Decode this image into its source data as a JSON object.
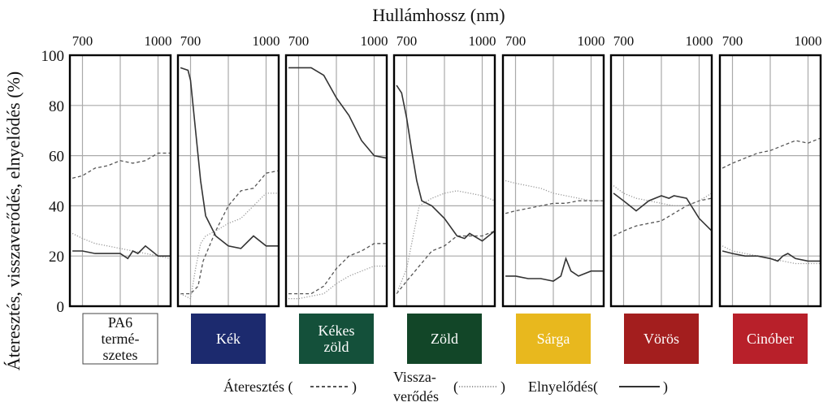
{
  "chart_data": {
    "type": "line",
    "xlabel": "Hullámhossz (nm)",
    "ylabel": "Áteresztés, visszaverődés, elnyelődés (%)",
    "xlim": [
      650,
      1050
    ],
    "ylim": [
      0,
      100
    ],
    "x_tick_labels": [
      "700",
      "1000"
    ],
    "x_ticks": [
      700,
      1000
    ],
    "y_ticks": [
      0,
      20,
      40,
      60,
      80,
      100
    ],
    "grid": true,
    "legend": [
      {
        "key": "transmission",
        "label": "Áteresztés (",
        "close": ")",
        "style": "dashed"
      },
      {
        "key": "reflection",
        "label_lines": [
          "Vissza-",
          "verődés"
        ],
        "close": ")",
        "style": "dotted"
      },
      {
        "key": "absorption",
        "label": "Elnyelődés(",
        "close": ")",
        "style": "solid"
      }
    ],
    "panels": [
      {
        "name_lines": [
          "PA6",
          "termé-",
          "szetes"
        ],
        "swatch": "#ffffff",
        "text_color": "#111111",
        "series": [
          {
            "key": "transmission",
            "x": [
              660,
              700,
              750,
              800,
              850,
              900,
              950,
              1000,
              1050
            ],
            "y": [
              51,
              52,
              55,
              56,
              58,
              57,
              58,
              61,
              61
            ]
          },
          {
            "key": "reflection",
            "x": [
              660,
              700,
              750,
              800,
              850,
              900,
              950,
              1000,
              1050
            ],
            "y": [
              29,
              27,
              25,
              24,
              23,
              22,
              21,
              20,
              19
            ]
          },
          {
            "key": "absorption",
            "x": [
              660,
              700,
              750,
              800,
              850,
              880,
              900,
              920,
              950,
              1000,
              1050
            ],
            "y": [
              22,
              22,
              21,
              21,
              21,
              19,
              22,
              21,
              24,
              20,
              20
            ]
          }
        ]
      },
      {
        "name_lines": [
          "Kék"
        ],
        "swatch": "#1c2a6e",
        "text_color": "#ffffff",
        "series": [
          {
            "key": "transmission",
            "x": [
              660,
              700,
              730,
              750,
              800,
              850,
              900,
              950,
              1000,
              1050
            ],
            "y": [
              5,
              5,
              8,
              18,
              30,
              40,
              46,
              47,
              53,
              54
            ]
          },
          {
            "key": "reflection",
            "x": [
              660,
              700,
              720,
              740,
              760,
              800,
              850,
              900,
              950,
              1000,
              1050
            ],
            "y": [
              5,
              3,
              15,
              25,
              28,
              30,
              33,
              35,
              40,
              45,
              45
            ]
          },
          {
            "key": "absorption",
            "x": [
              660,
              690,
              700,
              720,
              740,
              760,
              800,
              850,
              900,
              950,
              1000,
              1050
            ],
            "y": [
              95,
              94,
              90,
              70,
              50,
              36,
              28,
              24,
              23,
              28,
              24,
              24
            ]
          }
        ]
      },
      {
        "name_lines": [
          "Kékes",
          "zöld"
        ],
        "swatch": "#14503a",
        "text_color": "#ffffff",
        "series": [
          {
            "key": "transmission",
            "x": [
              660,
              700,
              750,
              800,
              850,
              900,
              950,
              1000,
              1050
            ],
            "y": [
              5,
              5,
              5,
              8,
              15,
              20,
              22,
              25,
              25
            ]
          },
          {
            "key": "reflection",
            "x": [
              660,
              700,
              750,
              800,
              850,
              900,
              950,
              1000,
              1050
            ],
            "y": [
              3,
              3,
              4,
              5,
              9,
              12,
              14,
              16,
              16
            ]
          },
          {
            "key": "absorption",
            "x": [
              660,
              700,
              750,
              800,
              850,
              900,
              950,
              1000,
              1050
            ],
            "y": [
              95,
              95,
              95,
              92,
              83,
              76,
              66,
              60,
              59
            ]
          }
        ]
      },
      {
        "name_lines": [
          "Zöld"
        ],
        "swatch": "#124628",
        "text_color": "#ffffff",
        "series": [
          {
            "key": "transmission",
            "x": [
              660,
              700,
              750,
              800,
              850,
              900,
              950,
              1000,
              1050
            ],
            "y": [
              5,
              10,
              16,
              22,
              24,
              28,
              28,
              28,
              30
            ]
          },
          {
            "key": "reflection",
            "x": [
              660,
              700,
              730,
              750,
              800,
              850,
              900,
              950,
              1000,
              1050
            ],
            "y": [
              5,
              15,
              30,
              40,
              43,
              45,
              46,
              45,
              44,
              42
            ]
          },
          {
            "key": "absorption",
            "x": [
              660,
              680,
              700,
              720,
              740,
              760,
              800,
              850,
              900,
              930,
              950,
              1000,
              1050
            ],
            "y": [
              88,
              85,
              75,
              62,
              50,
              42,
              40,
              35,
              28,
              27,
              29,
              26,
              30
            ]
          }
        ]
      },
      {
        "name_lines": [
          "Sárga"
        ],
        "swatch": "#e8b81e",
        "text_color": "#ffffff",
        "series": [
          {
            "key": "transmission",
            "x": [
              660,
              700,
              750,
              800,
              850,
              900,
              950,
              1000,
              1050
            ],
            "y": [
              37,
              38,
              39,
              40,
              41,
              41,
              42,
              42,
              42
            ]
          },
          {
            "key": "reflection",
            "x": [
              660,
              700,
              750,
              800,
              850,
              900,
              950,
              1000,
              1050
            ],
            "y": [
              50,
              49,
              48,
              47,
              45,
              44,
              43,
              42,
              42
            ]
          },
          {
            "key": "absorption",
            "x": [
              660,
              700,
              750,
              800,
              850,
              880,
              900,
              920,
              950,
              1000,
              1050
            ],
            "y": [
              12,
              12,
              11,
              11,
              10,
              12,
              19,
              14,
              12,
              14,
              14
            ]
          }
        ]
      },
      {
        "name_lines": [
          "Vörös"
        ],
        "swatch": "#a31e1e",
        "text_color": "#ffffff",
        "series": [
          {
            "key": "transmission",
            "x": [
              660,
              700,
              750,
              800,
              850,
              900,
              950,
              1000,
              1050
            ],
            "y": [
              28,
              30,
              32,
              33,
              34,
              37,
              40,
              42,
              43
            ]
          },
          {
            "key": "reflection",
            "x": [
              660,
              700,
              750,
              800,
              850,
              900,
              950,
              1000,
              1050
            ],
            "y": [
              48,
              45,
              43,
              42,
              41,
              40,
              40,
              42,
              45
            ]
          },
          {
            "key": "absorption",
            "x": [
              660,
              700,
              750,
              800,
              850,
              880,
              900,
              950,
              1000,
              1050
            ],
            "y": [
              45,
              42,
              38,
              42,
              44,
              43,
              44,
              43,
              35,
              30
            ]
          }
        ]
      },
      {
        "name_lines": [
          "Cinóber"
        ],
        "swatch": "#b8202a",
        "text_color": "#ffffff",
        "series": [
          {
            "key": "transmission",
            "x": [
              660,
              700,
              750,
              800,
              850,
              900,
              950,
              1000,
              1050
            ],
            "y": [
              55,
              57,
              59,
              61,
              62,
              64,
              66,
              65,
              67
            ]
          },
          {
            "key": "reflection",
            "x": [
              660,
              700,
              750,
              800,
              850,
              900,
              950,
              1000,
              1050
            ],
            "y": [
              24,
              22,
              21,
              20,
              19,
              18,
              17,
              17,
              17
            ]
          },
          {
            "key": "absorption",
            "x": [
              660,
              700,
              750,
              800,
              850,
              880,
              900,
              920,
              950,
              1000,
              1050
            ],
            "y": [
              22,
              21,
              20,
              20,
              19,
              18,
              20,
              21,
              19,
              18,
              18
            ]
          }
        ]
      }
    ]
  }
}
